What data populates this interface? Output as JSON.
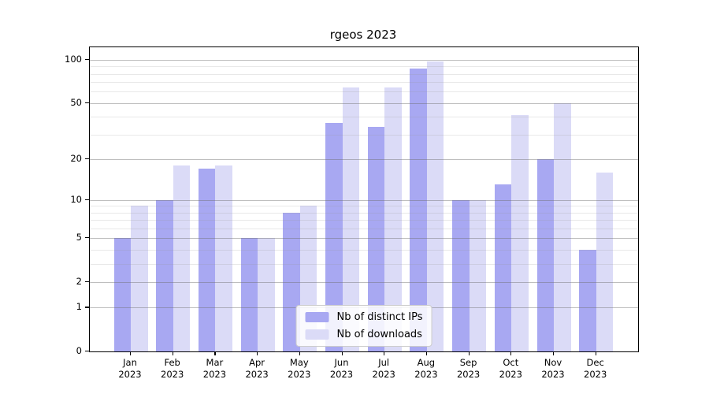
{
  "title": "rgeos 2023",
  "chart_data": {
    "type": "bar",
    "title": "rgeos 2023",
    "year": "2023",
    "categories": [
      "Jan",
      "Feb",
      "Mar",
      "Apr",
      "May",
      "Jun",
      "Jul",
      "Aug",
      "Sep",
      "Oct",
      "Nov",
      "Dec"
    ],
    "series": [
      {
        "name": "Nb of distinct IPs",
        "color": "#a8a8f2",
        "values": [
          5,
          10,
          17,
          5,
          8,
          36,
          34,
          87,
          10,
          13,
          20,
          4
        ]
      },
      {
        "name": "Nb of downloads",
        "color": "#dbdbf7",
        "values": [
          9,
          18,
          18,
          5,
          9,
          64,
          64,
          97,
          10,
          41,
          50,
          16
        ]
      }
    ],
    "yscale": "log10(1+x)",
    "ylim": [
      0,
      122
    ],
    "y_major_ticks": [
      0,
      1,
      2,
      5,
      10,
      20,
      50,
      100
    ],
    "y_minor_ticks": [
      3,
      4,
      6,
      7,
      8,
      9,
      30,
      40,
      60,
      70,
      80,
      90
    ],
    "grid": true,
    "legend_position": "lower center"
  },
  "legend": {
    "entries": [
      "Nb of distinct IPs",
      "Nb of downloads"
    ]
  },
  "colors": {
    "background": "#ffffff",
    "spine": "#000000",
    "bar_distinct_ips": "#a8a8f2",
    "bar_downloads": "#dbdbf7",
    "grid_major": "#b4b4b4",
    "grid_minor": "#e6e6e6",
    "text": "#000000"
  }
}
